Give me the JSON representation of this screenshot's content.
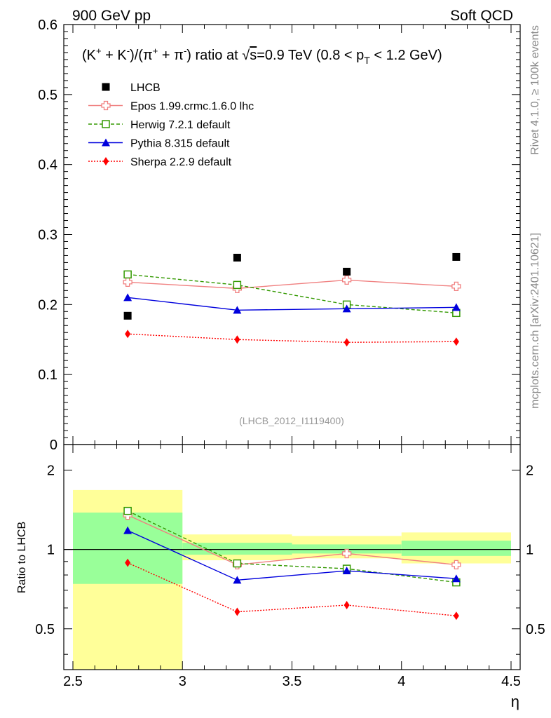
{
  "header": {
    "left": "900 GeV pp",
    "right": "Soft QCD",
    "side_rivet": "Rivet 4.1.0, ≥ 100k events",
    "side_mcplots": "mcplots.cern.ch [arXiv:2401.10621]",
    "analysis_id": "(LHCB_2012_I1119400)"
  },
  "chart_data": [
    {
      "type": "scatter",
      "title": "(K⁺ + K⁻)/(π⁺ + π⁻) ratio at √s=0.9 TeV (0.8 < p_T < 1.2 GeV)",
      "title_parts": {
        "pre": "(K",
        "sup1": "+",
        "mid1": " + K",
        "sup2": "-",
        "mid2": ")/(π",
        "sup3": "+",
        "mid3": " + π",
        "sup4": "-",
        "mid4": ") ratio at ",
        "sqrt": "√",
        "sqrt_arg": "s",
        "mid5": "=0.9 TeV (0.8 < p",
        "sub": "T",
        "post": " < 1.2 GeV)"
      },
      "xlabel": "η",
      "ylabel": "",
      "xlim": [
        2.5,
        4.5
      ],
      "ylim": [
        0,
        0.6
      ],
      "yticks": [
        0,
        0.1,
        0.2,
        0.3,
        0.4,
        0.5,
        0.6
      ],
      "ytick_labels": [
        "0",
        "0.1",
        "0.2",
        "0.3",
        "0.4",
        "0.5",
        "0.6"
      ],
      "x": [
        2.75,
        3.25,
        3.75,
        4.25
      ],
      "data": {
        "name": "LHCB",
        "values": [
          0.184,
          0.267,
          0.247,
          0.268
        ],
        "color": "#000000"
      },
      "series": [
        {
          "name": "Epos 1.99.crmc.1.6.0 lhc",
          "values": [
            0.232,
            0.223,
            0.235,
            0.226
          ],
          "errors": [
            0.005,
            0.005,
            0.006,
            0.006
          ],
          "color": "#f08080",
          "marker": "open-cross",
          "dash": "solid"
        },
        {
          "name": "Herwig 7.2.1 default",
          "values": [
            0.243,
            0.228,
            0.2,
            0.188
          ],
          "errors": [
            0.004,
            0.004,
            0.004,
            0.004
          ],
          "color": "#339900",
          "marker": "open-square",
          "dash": "dashed"
        },
        {
          "name": "Pythia 8.315 default",
          "values": [
            0.21,
            0.192,
            0.194,
            0.196
          ],
          "errors": [
            0.004,
            0.004,
            0.004,
            0.005
          ],
          "color": "#0000dd",
          "marker": "triangle",
          "dash": "solid"
        },
        {
          "name": "Sherpa 2.2.9 default",
          "values": [
            0.158,
            0.15,
            0.146,
            0.147
          ],
          "errors": [
            0.002,
            0.002,
            0.002,
            0.002
          ],
          "color": "#ff0000",
          "marker": "diamond",
          "dash": "dotted"
        }
      ]
    },
    {
      "type": "scatter",
      "title": "",
      "xlabel": "η",
      "ylabel": "Ratio to LHCB",
      "xlim": [
        2.5,
        4.5
      ],
      "ylim": [
        0.35,
        2.5
      ],
      "scale": "log",
      "xticks": [
        2.5,
        3,
        3.5,
        4,
        4.5
      ],
      "xtick_labels": [
        "2.5",
        "3",
        "3.5",
        "4",
        "4.5"
      ],
      "yticks": [
        0.5,
        1,
        2
      ],
      "ytick_labels": [
        "0.5",
        "1",
        "2"
      ],
      "bins": [
        [
          2.5,
          3.0
        ],
        [
          3.0,
          3.5
        ],
        [
          3.5,
          4.0
        ],
        [
          4.0,
          4.5
        ]
      ],
      "band_stat": [
        [
          0.74,
          1.38
        ],
        [
          0.955,
          1.06
        ],
        [
          0.965,
          1.045
        ],
        [
          0.945,
          1.08
        ]
      ],
      "band_total": [
        [
          0.35,
          1.68
        ],
        [
          0.91,
          1.14
        ],
        [
          0.925,
          1.125
        ],
        [
          0.885,
          1.16
        ]
      ],
      "band_colors": {
        "stat": "#99ff99",
        "total": "#ffff99"
      },
      "x": [
        2.75,
        3.25,
        3.75,
        4.25
      ],
      "series": [
        {
          "name": "Epos 1.99.crmc.1.6.0 lhc",
          "values": [
            1.35,
            0.875,
            0.965,
            0.875
          ],
          "errors": [
            0.025,
            0.02,
            0.025,
            0.025
          ],
          "color": "#f08080"
        },
        {
          "name": "Herwig 7.2.1 default",
          "values": [
            1.4,
            0.885,
            0.845,
            0.75
          ],
          "errors": [
            0.02,
            0.02,
            0.015,
            0.02
          ],
          "color": "#339900"
        },
        {
          "name": "Pythia 8.315 default",
          "values": [
            1.18,
            0.765,
            0.83,
            0.775
          ],
          "errors": [
            0.02,
            0.015,
            0.015,
            0.02
          ],
          "color": "#0000dd"
        },
        {
          "name": "Sherpa 2.2.9 default",
          "values": [
            0.89,
            0.58,
            0.615,
            0.56
          ],
          "errors": [
            0.01,
            0.015,
            0.015,
            0.015
          ],
          "color": "#ff0000"
        }
      ]
    }
  ]
}
